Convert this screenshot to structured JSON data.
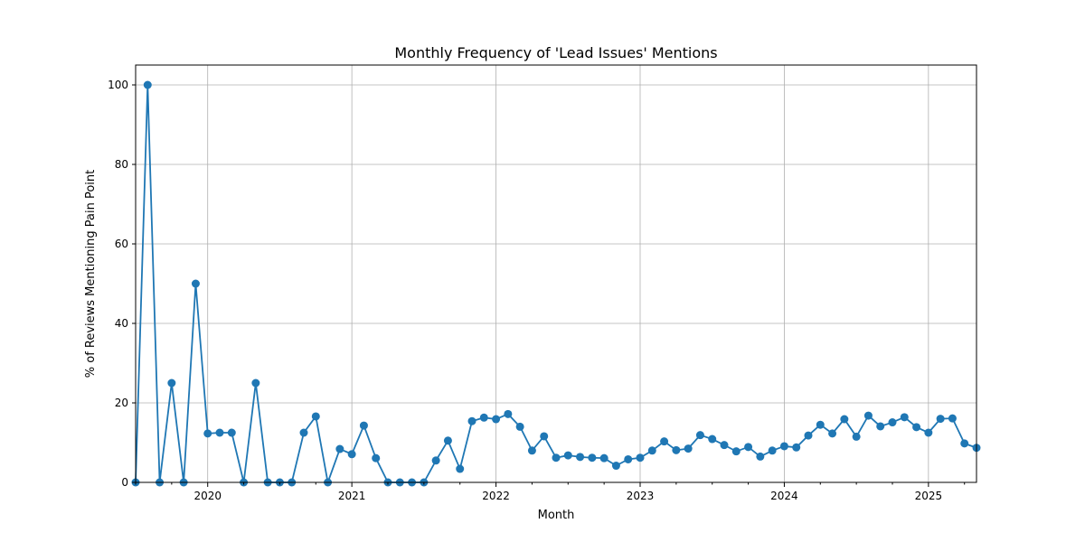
{
  "chart_data": {
    "type": "line",
    "title": "Monthly Frequency of 'Lead Issues' Mentions",
    "xlabel": "Month",
    "ylabel": "% of Reviews Mentioning Pain Point",
    "start": "2019-07",
    "xlim": [
      "2019-07",
      "2025-05"
    ],
    "ylim": [
      0,
      105
    ],
    "yticks": [
      0,
      20,
      40,
      60,
      80,
      100
    ],
    "xticks": [
      {
        "label": "2020",
        "date": "2020-01"
      },
      {
        "label": "2021",
        "date": "2021-01"
      },
      {
        "label": "2022",
        "date": "2022-01"
      },
      {
        "label": "2023",
        "date": "2023-01"
      },
      {
        "label": "2024",
        "date": "2024-01"
      },
      {
        "label": "2025",
        "date": "2025-01"
      }
    ],
    "grid": true,
    "legend": "none",
    "line_color": "#1f77b4",
    "marker": "circle",
    "series": [
      {
        "values": [
          0,
          100,
          0,
          25,
          0,
          50,
          12.3,
          12.5,
          12.5,
          0,
          25,
          0,
          0,
          0,
          12.5,
          16.6,
          0,
          8.4,
          7.1,
          14.3,
          6.1,
          0,
          0,
          0,
          0,
          5.5,
          10.5,
          3.4,
          15.4,
          16.3,
          15.9,
          17.2,
          14.0,
          8.0,
          11.6,
          6.2,
          6.8,
          6.4,
          6.2,
          6.1,
          4.2,
          5.8,
          6.2,
          8.0,
          10.3,
          8.1,
          8.5,
          11.9,
          10.9,
          9.4,
          7.8,
          8.9,
          6.5,
          8.0,
          9.1,
          8.8,
          11.8,
          14.5,
          12.3,
          15.9,
          11.5,
          16.8,
          14.1,
          15.1,
          16.4,
          13.9,
          12.5,
          16.0,
          16.1,
          9.8,
          8.7
        ]
      }
    ]
  }
}
